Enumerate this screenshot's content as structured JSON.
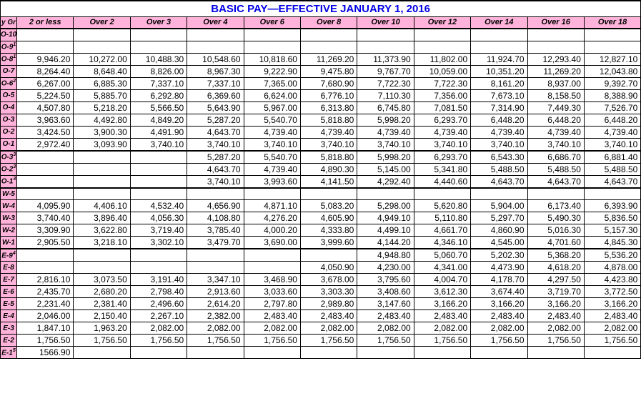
{
  "title": "BASIC PAY—EFFECTIVE JANUARY 1, 2016",
  "grade_header": "y Gr",
  "columns": [
    "2 or less",
    "Over 2",
    "Over 3",
    "Over 4",
    "Over 6",
    "Over 8",
    "Over 10",
    "Over 12",
    "Over 14",
    "Over 16",
    "Over 18"
  ],
  "colors": {
    "header_bg": "#ffb3da",
    "title_color": "#0000e6",
    "border": "#000000",
    "background": "#ffffff"
  },
  "fonts": {
    "title_size_pt": 15,
    "header_size_pt": 11,
    "cell_size_pt": 12,
    "grade_size_pt": 10,
    "family": "Arial"
  },
  "sections": [
    {
      "top_border": false,
      "rows": [
        {
          "grade": "O-10",
          "values": [
            "",
            "",
            "",
            "",
            "",
            "",
            "",
            "",
            "",
            "",
            ""
          ]
        },
        {
          "grade": "O-9",
          "sup": "1",
          "values": [
            "",
            "",
            "",
            "",
            "",
            "",
            "",
            "",
            "",
            "",
            ""
          ]
        },
        {
          "grade": "O-8",
          "sup": "1",
          "values": [
            "9,946.20",
            "10,272.00",
            "10,488.30",
            "10,548.60",
            "10,818.60",
            "11,269.20",
            "11,373.90",
            "11,802.00",
            "11,924.70",
            "12,293.40",
            "12,827.10"
          ]
        },
        {
          "grade": "O-7",
          "values": [
            "8,264.40",
            "8,648.40",
            "8,826.00",
            "8,967.30",
            "9,222.90",
            "9,475.80",
            "9,767.70",
            "10,059.00",
            "10,351.20",
            "11,269.20",
            "12,043.80"
          ]
        },
        {
          "grade": "O-6",
          "sup": "2",
          "values": [
            "6,267.00",
            "6,885.30",
            "7,337.10",
            "7,337.10",
            "7,365.00",
            "7,680.90",
            "7,722.30",
            "7,722.30",
            "8,161.20",
            "8,937.00",
            "9,392.70"
          ]
        },
        {
          "grade": "O-5",
          "values": [
            "5,224.50",
            "5,885.70",
            "6,292.80",
            "6,369.60",
            "6,624.00",
            "6,776.10",
            "7,110.30",
            "7,356.00",
            "7,673.10",
            "8,158.50",
            "8,388.90"
          ]
        },
        {
          "grade": "O-4",
          "values": [
            "4,507.80",
            "5,218.20",
            "5,566.50",
            "5,643.90",
            "5,967.00",
            "6,313.80",
            "6,745.80",
            "7,081.50",
            "7,314.90",
            "7,449.30",
            "7,526.70"
          ]
        },
        {
          "grade": "O-3",
          "values": [
            "3,963.60",
            "4,492.80",
            "4,849.20",
            "5,287.20",
            "5,540.70",
            "5,818.80",
            "5,998.20",
            "6,293.70",
            "6,448.20",
            "6,448.20",
            "6,448.20"
          ]
        },
        {
          "grade": "O-2",
          "values": [
            "3,424.50",
            "3,900.30",
            "4,491.90",
            "4,643.70",
            "4,739.40",
            "4,739.40",
            "4,739.40",
            "4,739.40",
            "4,739.40",
            "4,739.40",
            "4,739.40"
          ]
        },
        {
          "grade": "O-1",
          "values": [
            "2,972.40",
            "3,093.90",
            "3,740.10",
            "3,740.10",
            "3,740.10",
            "3,740.10",
            "3,740.10",
            "3,740.10",
            "3,740.10",
            "3,740.10",
            "3,740.10"
          ]
        }
      ]
    },
    {
      "top_border": true,
      "rows": [
        {
          "grade": "O-3",
          "sup": "3",
          "values": [
            "",
            "",
            "",
            "5,287.20",
            "5,540.70",
            "5,818.80",
            "5,998.20",
            "6,293.70",
            "6,543.30",
            "6,686.70",
            "6,881.40"
          ]
        },
        {
          "grade": "O-2",
          "sup": "3",
          "values": [
            "",
            "",
            "",
            "4,643.70",
            "4,739.40",
            "4,890.30",
            "5,145.00",
            "5,341.80",
            "5,488.50",
            "5,488.50",
            "5,488.50"
          ]
        },
        {
          "grade": "O-1",
          "sup": "3",
          "values": [
            "",
            "",
            "",
            "3,740.10",
            "3,993.60",
            "4,141.50",
            "4,292.40",
            "4,440.60",
            "4,643.70",
            "4,643.70",
            "4,643.70"
          ]
        }
      ]
    },
    {
      "top_border": true,
      "rows": [
        {
          "grade": "W-5",
          "values": [
            "",
            "",
            "",
            "",
            "",
            "",
            "",
            "",
            "",
            "",
            ""
          ]
        },
        {
          "grade": "W-4",
          "values": [
            "4,095.90",
            "4,406.10",
            "4,532.40",
            "4,656.90",
            "4,871.10",
            "5,083.20",
            "5,298.00",
            "5,620.80",
            "5,904.00",
            "6,173.40",
            "6,393.90"
          ]
        },
        {
          "grade": "W-3",
          "values": [
            "3,740.40",
            "3,896.40",
            "4,056.30",
            "4,108.80",
            "4,276.20",
            "4,605.90",
            "4,949.10",
            "5,110.80",
            "5,297.70",
            "5,490.30",
            "5,836.50"
          ]
        },
        {
          "grade": "W-2",
          "values": [
            "3,309.90",
            "3,622.80",
            "3,719.40",
            "3,785.40",
            "4,000.20",
            "4,333.80",
            "4,499.10",
            "4,661.70",
            "4,860.90",
            "5,016.30",
            "5,157.30"
          ]
        },
        {
          "grade": "W-1",
          "values": [
            "2,905.50",
            "3,218.10",
            "3,302.10",
            "3,479.70",
            "3,690.00",
            "3,999.60",
            "4,144.20",
            "4,346.10",
            "4,545.00",
            "4,701.60",
            "4,845.30"
          ]
        }
      ]
    },
    {
      "top_border": true,
      "rows": [
        {
          "grade": "E-9",
          "sup": "4",
          "values": [
            "",
            "",
            "",
            "",
            "",
            "",
            "4,948.80",
            "5,060.70",
            "5,202.30",
            "5,368.20",
            "5,536.20"
          ]
        },
        {
          "grade": "E-8",
          "values": [
            "",
            "",
            "",
            "",
            "",
            "4,050.90",
            "4,230.00",
            "4,341.00",
            "4,473.90",
            "4,618.20",
            "4,878.00"
          ]
        },
        {
          "grade": "E-7",
          "values": [
            "2,816.10",
            "3,073.50",
            "3,191.40",
            "3,347.10",
            "3,468.90",
            "3,678.00",
            "3,795.60",
            "4,004.70",
            "4,178.70",
            "4,297.50",
            "4,423.80"
          ]
        },
        {
          "grade": "E-6",
          "values": [
            "2,435.70",
            "2,680.20",
            "2,798.40",
            "2,913.60",
            "3,033.60",
            "3,303.30",
            "3,408.60",
            "3,612.30",
            "3,674.40",
            "3,719.70",
            "3,772.50"
          ]
        },
        {
          "grade": "E-5",
          "values": [
            "2,231.40",
            "2,381.40",
            "2,496.60",
            "2,614.20",
            "2,797.80",
            "2,989.80",
            "3,147.60",
            "3,166.20",
            "3,166.20",
            "3,166.20",
            "3,166.20"
          ]
        },
        {
          "grade": "E-4",
          "values": [
            "2,046.00",
            "2,150.40",
            "2,267.10",
            "2,382.00",
            "2,483.40",
            "2,483.40",
            "2,483.40",
            "2,483.40",
            "2,483.40",
            "2,483.40",
            "2,483.40"
          ]
        },
        {
          "grade": "E-3",
          "values": [
            "1,847.10",
            "1,963.20",
            "2,082.00",
            "2,082.00",
            "2,082.00",
            "2,082.00",
            "2,082.00",
            "2,082.00",
            "2,082.00",
            "2,082.00",
            "2,082.00"
          ]
        },
        {
          "grade": "E-2",
          "values": [
            "1,756.50",
            "1,756.50",
            "1,756.50",
            "1,756.50",
            "1,756.50",
            "1,756.50",
            "1,756.50",
            "1,756.50",
            "1,756.50",
            "1,756.50",
            "1,756.50"
          ]
        },
        {
          "grade": "E-1",
          "sup": "5",
          "values": [
            "1566.90",
            "",
            "",
            "",
            "",
            "",
            "",
            "",
            "",
            "",
            ""
          ]
        }
      ]
    }
  ]
}
